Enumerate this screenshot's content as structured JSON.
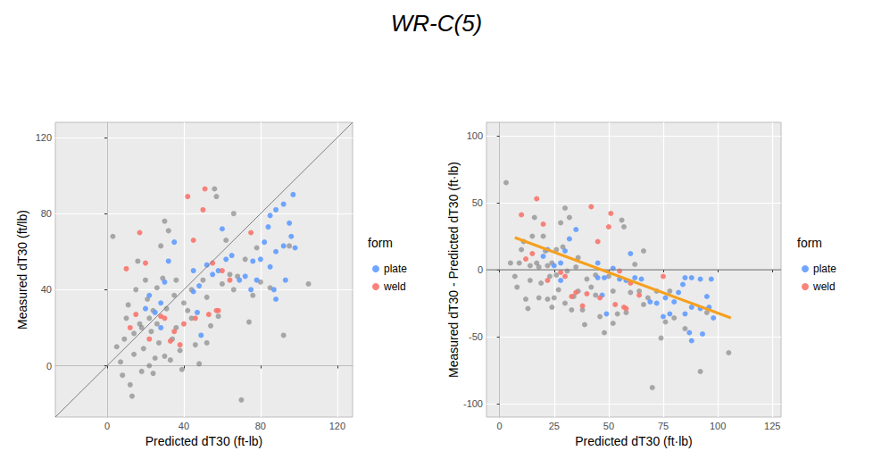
{
  "title": "WR-C(5)",
  "chart_data": [
    {
      "type": "scatter",
      "x_label": "Predicted dT30 (ft-lb)",
      "y_label": "Measured dT30 (ft/lb)",
      "legend_title": "form",
      "xlim": [
        -27,
        128
      ],
      "xticks": [
        0,
        40,
        80,
        120
      ],
      "ylim": [
        -27,
        128
      ],
      "yticks": [
        0,
        40,
        80,
        120
      ],
      "grid": true,
      "legend": "right",
      "marker": "circle",
      "series": [
        {
          "color": "#6E6E6E",
          "x": [
            3,
            5,
            7,
            8,
            9,
            10,
            11,
            12,
            13,
            14,
            15,
            16,
            17,
            18,
            19,
            20,
            21,
            22,
            23,
            24,
            25,
            26,
            27,
            28,
            29,
            30,
            31,
            32,
            33,
            34,
            35,
            36,
            38,
            39,
            40,
            42,
            44,
            46,
            48,
            50,
            52,
            54,
            56,
            57,
            58,
            60,
            62,
            64,
            66,
            68,
            70,
            72,
            74,
            76,
            78,
            80,
            85,
            92,
            95,
            105,
            18,
            22,
            26,
            14,
            24,
            30,
            36,
            44,
            52,
            66
          ],
          "values": [
            68,
            10,
            2,
            -5,
            14,
            25,
            32,
            -10,
            -16,
            6,
            40,
            55,
            22,
            -3,
            9,
            45,
            35,
            0,
            18,
            29,
            4,
            41,
            12,
            63,
            46,
            76,
            30,
            71,
            3,
            14,
            37,
            20,
            8,
            -2,
            33,
            29,
            40,
            11,
            1,
            45,
            36,
            21,
            93,
            89,
            26,
            43,
            66,
            48,
            40,
            47,
            -18,
            56,
            23,
            37,
            62,
            44,
            41,
            16,
            63,
            43,
            20,
            25,
            22,
            17,
            -4,
            5,
            45,
            25,
            12,
            80
          ]
        },
        {
          "name": "plate",
          "color": "#619CFF",
          "x": [
            97,
            92,
            88,
            85,
            95,
            96,
            98,
            92,
            88,
            85,
            80,
            78,
            75,
            72,
            69,
            65,
            62,
            58,
            55,
            52,
            48,
            45,
            45,
            47,
            35,
            32,
            30,
            28,
            25,
            22,
            20,
            28,
            60,
            93,
            88,
            87,
            82,
            84,
            76,
            49
          ],
          "values": [
            90,
            85,
            82,
            79,
            75,
            68,
            62,
            63,
            60,
            52,
            56,
            45,
            40,
            47,
            45,
            58,
            56,
            50,
            48,
            53,
            42,
            50,
            39,
            28,
            65,
            55,
            44,
            33,
            28,
            37,
            30,
            20,
            72,
            45,
            35,
            40,
            65,
            73,
            55,
            16
          ]
        },
        {
          "name": "weld",
          "color": "#F8766D",
          "x": [
            10,
            17,
            20,
            28,
            30,
            33,
            35,
            40,
            42,
            45,
            50,
            51,
            53,
            55,
            57,
            60,
            64,
            75,
            38,
            15,
            22,
            46,
            58,
            12
          ],
          "values": [
            51,
            70,
            54,
            26,
            25,
            13,
            18,
            22,
            89,
            66,
            82,
            93,
            27,
            54,
            29,
            50,
            45,
            70,
            11,
            27,
            14,
            25,
            29,
            20
          ]
        },
        {
          "type": "line",
          "line_style": "solid",
          "color": "#7F7F7F",
          "x": [
            -27,
            128
          ],
          "values": [
            -27,
            128
          ]
        }
      ]
    },
    {
      "type": "scatter",
      "x_label": "Predicted dT30 (ft·lb)",
      "y_label": "Measured dT30 - Predicted dT30 (ft·lb)",
      "legend_title": "form",
      "xlim": [
        -6,
        129
      ],
      "xticks": [
        0,
        25,
        50,
        75,
        100,
        125
      ],
      "ylim": [
        -110,
        110
      ],
      "yticks": [
        -100,
        -50,
        0,
        50,
        100
      ],
      "grid": true,
      "legend": "right",
      "marker": "circle",
      "series": [
        {
          "color": "#6E6E6E",
          "x": [
            3,
            5,
            7,
            8,
            9,
            10,
            11,
            12,
            13,
            14,
            15,
            16,
            17,
            18,
            19,
            20,
            21,
            22,
            23,
            24,
            25,
            26,
            27,
            28,
            29,
            30,
            31,
            32,
            33,
            34,
            35,
            36,
            38,
            39,
            40,
            42,
            44,
            46,
            48,
            50,
            52,
            54,
            56,
            57,
            58,
            60,
            62,
            64,
            66,
            68,
            70,
            72,
            74,
            76,
            78,
            80,
            85,
            92,
            95,
            105,
            18,
            22,
            26,
            14,
            24,
            30,
            36,
            44,
            52,
            66
          ],
          "values": [
            65,
            5,
            -5,
            -13,
            5,
            15,
            21,
            -22,
            -29,
            -8,
            25,
            39,
            5,
            -21,
            -10,
            25,
            14,
            -22,
            -5,
            5,
            -21,
            15,
            -15,
            35,
            17,
            46,
            -1,
            39,
            -30,
            -20,
            2,
            -16,
            -30,
            -41,
            -7,
            -13,
            -4,
            -35,
            -47,
            -5,
            -16,
            -33,
            37,
            32,
            -32,
            -17,
            4,
            -16,
            -26,
            -21,
            -88,
            -16,
            -51,
            -39,
            -16,
            -36,
            -44,
            -76,
            -32,
            -62,
            2,
            3,
            -4,
            3,
            -28,
            -25,
            9,
            -19,
            -40,
            14
          ]
        },
        {
          "name": "plate",
          "color": "#619CFF",
          "x": [
            97,
            92,
            88,
            85,
            95,
            96,
            98,
            92,
            88,
            85,
            80,
            78,
            75,
            72,
            69,
            65,
            62,
            58,
            55,
            52,
            48,
            45,
            45,
            47,
            35,
            32,
            30,
            28,
            25,
            22,
            20,
            28,
            60,
            93,
            88,
            87,
            82,
            84,
            76,
            49
          ],
          "values": [
            -7,
            -7,
            -6,
            -6,
            -20,
            -28,
            -36,
            -29,
            -28,
            -33,
            -24,
            -33,
            -35,
            -25,
            -24,
            -7,
            -6,
            -8,
            -7,
            1,
            -6,
            5,
            -6,
            -19,
            30,
            23,
            14,
            5,
            3,
            15,
            10,
            -8,
            12,
            -48,
            -53,
            -47,
            -17,
            -11,
            -21,
            -33
          ]
        },
        {
          "name": "weld",
          "color": "#F8766D",
          "x": [
            10,
            17,
            20,
            28,
            30,
            33,
            35,
            40,
            42,
            45,
            50,
            51,
            53,
            55,
            57,
            60,
            64,
            75,
            38,
            15,
            22,
            46,
            58,
            12
          ],
          "values": [
            41,
            53,
            34,
            -2,
            -5,
            -20,
            -17,
            -18,
            47,
            21,
            32,
            42,
            -26,
            -1,
            -28,
            -10,
            -19,
            -5,
            -27,
            12,
            -8,
            -21,
            -29,
            8
          ]
        },
        {
          "type": "line",
          "line_style": "solid",
          "color": "#7F7F7F",
          "x": [
            -6,
            129
          ],
          "values": [
            0,
            0
          ]
        },
        {
          "type": "line",
          "line_style": "solid",
          "color": "#F5A01E",
          "x": [
            7,
            106
          ],
          "values": [
            24,
            -36
          ]
        }
      ]
    }
  ]
}
